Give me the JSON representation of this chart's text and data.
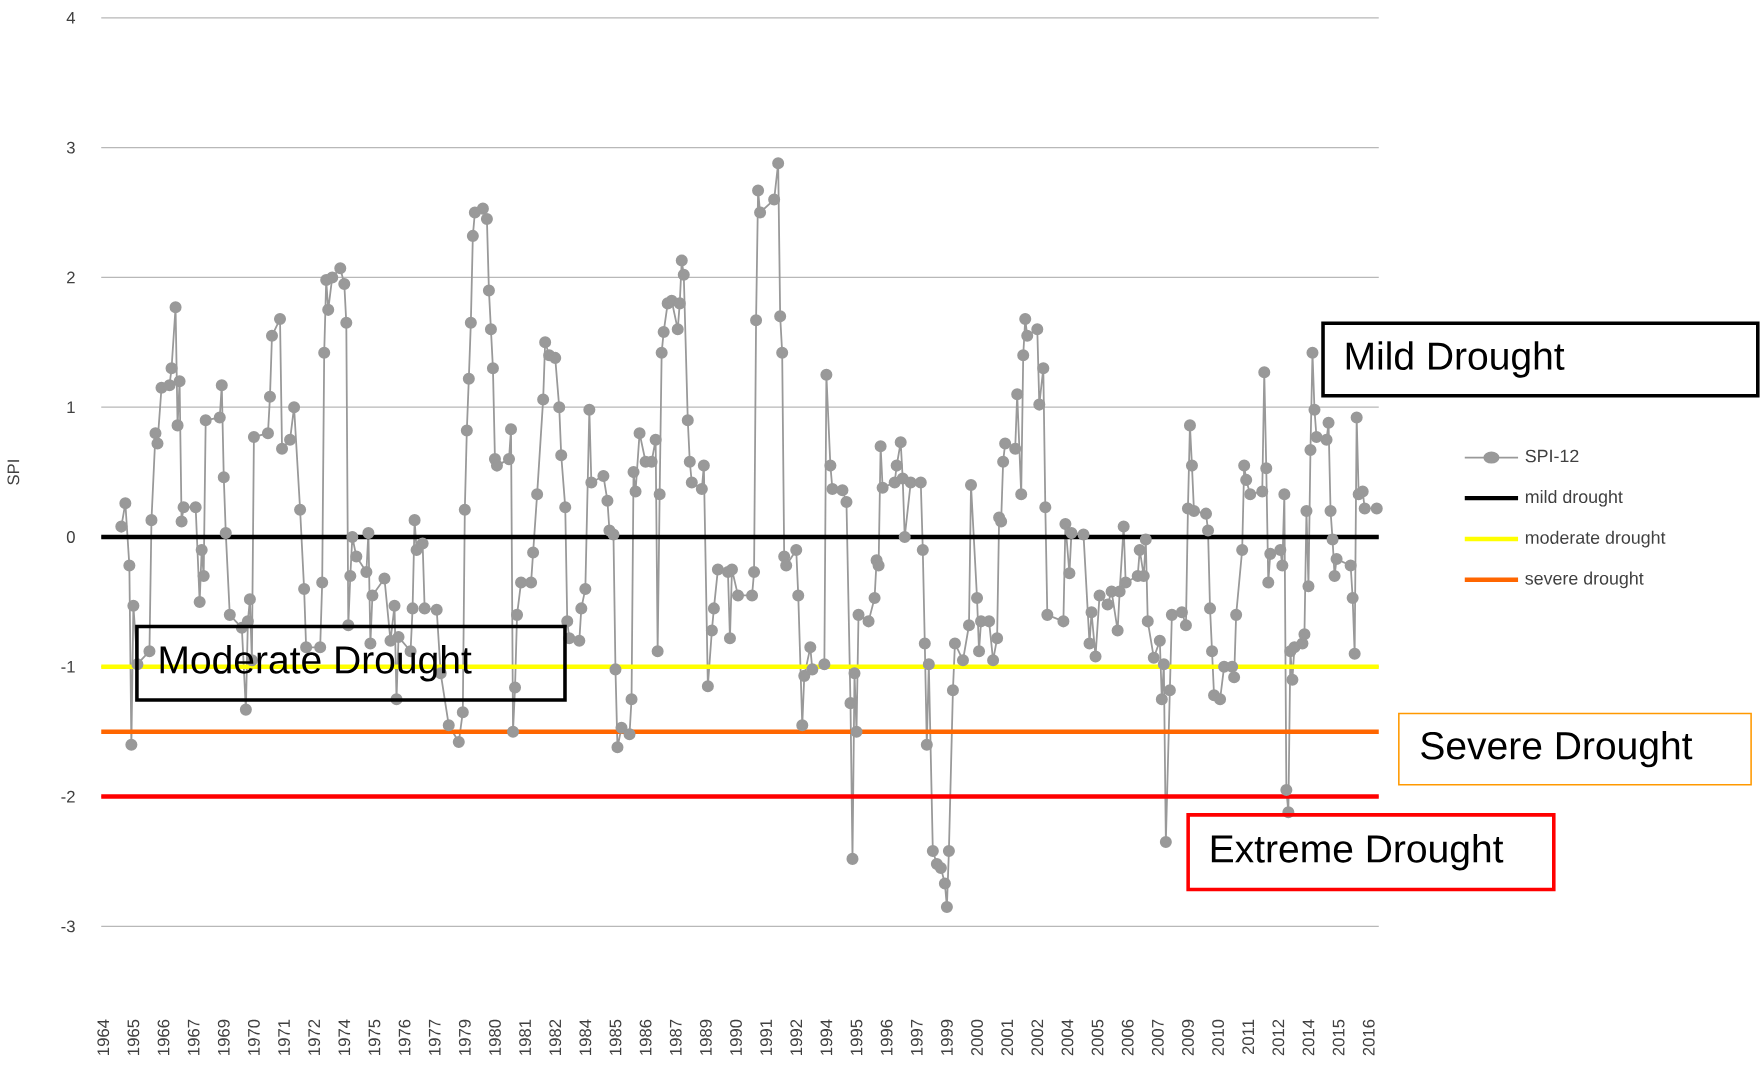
{
  "chart_data": {
    "type": "line",
    "ylabel": "SPI",
    "xlim": [
      "1963-12",
      "2016-12"
    ],
    "ylim": [
      -3,
      4
    ],
    "yticks": [
      -3,
      -2,
      -1,
      0,
      1,
      2,
      3,
      4
    ],
    "xticks": [
      {
        "value": "1964-01",
        "label": "1964"
      },
      {
        "value": "1965-04",
        "label": "1965"
      },
      {
        "value": "1966-07",
        "label": "1966"
      },
      {
        "value": "1967-10",
        "label": "1967"
      },
      {
        "value": "1969-01",
        "label": "1969"
      },
      {
        "value": "1970-04",
        "label": "1970"
      },
      {
        "value": "1971-07",
        "label": "1971"
      },
      {
        "value": "1972-10",
        "label": "1972"
      },
      {
        "value": "1974-01",
        "label": "1974"
      },
      {
        "value": "1975-04",
        "label": "1975"
      },
      {
        "value": "1976-07",
        "label": "1976"
      },
      {
        "value": "1977-10",
        "label": "1977"
      },
      {
        "value": "1979-01",
        "label": "1979"
      },
      {
        "value": "1980-04",
        "label": "1980"
      },
      {
        "value": "1981-07",
        "label": "1981"
      },
      {
        "value": "1982-10",
        "label": "1982"
      },
      {
        "value": "1984-01",
        "label": "1984"
      },
      {
        "value": "1985-04",
        "label": "1985"
      },
      {
        "value": "1986-07",
        "label": "1986"
      },
      {
        "value": "1987-10",
        "label": "1987"
      },
      {
        "value": "1989-01",
        "label": "1989"
      },
      {
        "value": "1990-04",
        "label": "1990"
      },
      {
        "value": "1991-07",
        "label": "1991"
      },
      {
        "value": "1992-10",
        "label": "1992"
      },
      {
        "value": "1994-01",
        "label": "1994"
      },
      {
        "value": "1995-04",
        "label": "1995"
      },
      {
        "value": "1996-07",
        "label": "1996"
      },
      {
        "value": "1997-10",
        "label": "1997"
      },
      {
        "value": "1999-01",
        "label": "1999"
      },
      {
        "value": "2000-04",
        "label": "2000"
      },
      {
        "value": "2001-07",
        "label": "2001"
      },
      {
        "value": "2002-10",
        "label": "2002"
      },
      {
        "value": "2004-01",
        "label": "2004"
      },
      {
        "value": "2005-04",
        "label": "2005"
      },
      {
        "value": "2006-07",
        "label": "2006"
      },
      {
        "value": "2007-10",
        "label": "2007"
      },
      {
        "value": "2009-01",
        "label": "2009"
      },
      {
        "value": "2010-04",
        "label": "2010"
      },
      {
        "value": "2011-07",
        "label": "2011"
      },
      {
        "value": "2012-10",
        "label": "2012"
      },
      {
        "value": "2014-01",
        "label": "2014"
      },
      {
        "value": "2015-04",
        "label": "2015"
      },
      {
        "value": "2016-07",
        "label": "2016"
      }
    ],
    "grid": "y",
    "legend": "right",
    "marker": "circle",
    "line_style": "solid",
    "series": [
      {
        "name": "SPI-12",
        "color": "#999999",
        "x": [
          "1964-10",
          "1964-12",
          "1965-02",
          "1965-03",
          "1965-04",
          "1965-06",
          "1965-12",
          "1966-01",
          "1966-03",
          "1966-04",
          "1966-06",
          "1966-10",
          "1966-11",
          "1967-01",
          "1967-02",
          "1967-03",
          "1967-04",
          "1967-05",
          "1967-11",
          "1968-01",
          "1968-02",
          "1968-03",
          "1968-04",
          "1968-11",
          "1968-12",
          "1969-01",
          "1969-02",
          "1969-04",
          "1969-10",
          "1969-12",
          "1970-01",
          "1970-02",
          "1970-03",
          "1970-04",
          "1970-11",
          "1970-12",
          "1971-01",
          "1971-05",
          "1971-06",
          "1971-10",
          "1971-12",
          "1972-03",
          "1972-05",
          "1972-06",
          "1973-01",
          "1973-02",
          "1973-03",
          "1973-04",
          "1973-05",
          "1973-07",
          "1973-11",
          "1974-01",
          "1974-02",
          "1974-03",
          "1974-04",
          "1974-05",
          "1974-07",
          "1974-12",
          "1975-01",
          "1975-02",
          "1975-03",
          "1975-09",
          "1975-12",
          "1976-02",
          "1976-03",
          "1976-04",
          "1976-10",
          "1976-11",
          "1976-12",
          "1977-01",
          "1977-04",
          "1977-05",
          "1977-11",
          "1978-01",
          "1978-05",
          "1978-10",
          "1978-12",
          "1979-01",
          "1979-02",
          "1979-03",
          "1979-04",
          "1979-05",
          "1979-06",
          "1979-10",
          "1979-12",
          "1980-01",
          "1980-02",
          "1980-03",
          "1980-04",
          "1980-05",
          "1980-11",
          "1980-12",
          "1981-01",
          "1981-02",
          "1981-03",
          "1981-05",
          "1981-10",
          "1981-11",
          "1982-01",
          "1982-04",
          "1982-05",
          "1982-07",
          "1982-10",
          "1982-12",
          "1983-01",
          "1983-03",
          "1983-04",
          "1983-05",
          "1983-10",
          "1983-11",
          "1984-01",
          "1984-03",
          "1984-04",
          "1984-10",
          "1984-12",
          "1985-01",
          "1985-03",
          "1985-04",
          "1985-05",
          "1985-07",
          "1985-11",
          "1985-12",
          "1986-01",
          "1986-02",
          "1986-04",
          "1986-07",
          "1986-10",
          "1986-12",
          "1987-01",
          "1987-02",
          "1987-03",
          "1987-04",
          "1987-06",
          "1987-08",
          "1987-11",
          "1987-12",
          "1988-01",
          "1988-02",
          "1988-04",
          "1988-05",
          "1988-06",
          "1988-11",
          "1988-12",
          "1989-02",
          "1989-04",
          "1989-05",
          "1989-07",
          "1989-12",
          "1990-01",
          "1990-02",
          "1990-05",
          "1990-12",
          "1991-01",
          "1991-02",
          "1991-03",
          "1991-04",
          "1991-11",
          "1992-01",
          "1992-02",
          "1992-03",
          "1992-04",
          "1992-05",
          "1992-10",
          "1992-11",
          "1993-01",
          "1993-02",
          "1993-05",
          "1993-06",
          "1993-12",
          "1994-01",
          "1994-03",
          "1994-04",
          "1994-09",
          "1994-11",
          "1995-01",
          "1995-02",
          "1995-03",
          "1995-04",
          "1995-05",
          "1995-10",
          "1996-01",
          "1996-02",
          "1996-03",
          "1996-04",
          "1996-05",
          "1996-11",
          "1996-12",
          "1997-02",
          "1997-03",
          "1997-04",
          "1997-07",
          "1997-12",
          "1998-01",
          "1998-02",
          "1998-03",
          "1998-04",
          "1998-06",
          "1998-08",
          "1998-10",
          "1998-12",
          "1999-01",
          "1999-02",
          "1999-04",
          "1999-05",
          "1999-09",
          "1999-12",
          "2000-01",
          "2000-04",
          "2000-05",
          "2000-06",
          "2000-10",
          "2000-12",
          "2001-02",
          "2001-03",
          "2001-04",
          "2001-05",
          "2001-06",
          "2001-11",
          "2001-12",
          "2002-02",
          "2002-03",
          "2002-04",
          "2002-05",
          "2002-10",
          "2002-11",
          "2003-01",
          "2003-02",
          "2003-03",
          "2003-11",
          "2003-12",
          "2004-02",
          "2004-03",
          "2004-09",
          "2004-12",
          "2005-01",
          "2005-03",
          "2005-05",
          "2005-09",
          "2005-11",
          "2006-02",
          "2006-03",
          "2006-05",
          "2006-06",
          "2006-12",
          "2007-01",
          "2007-03",
          "2007-04",
          "2007-05",
          "2007-08",
          "2007-11",
          "2007-12",
          "2008-01",
          "2008-02",
          "2008-04",
          "2008-05",
          "2008-10",
          "2008-12",
          "2009-01",
          "2009-02",
          "2009-03",
          "2009-04",
          "2009-10",
          "2009-11",
          "2009-12",
          "2010-01",
          "2010-02",
          "2010-05",
          "2010-07",
          "2010-11",
          "2010-12",
          "2011-01",
          "2011-04",
          "2011-05",
          "2011-06",
          "2011-08",
          "2012-02",
          "2012-03",
          "2012-04",
          "2012-05",
          "2012-06",
          "2012-11",
          "2012-12",
          "2013-01",
          "2013-02",
          "2013-03",
          "2013-04",
          "2013-05",
          "2013-06",
          "2013-10",
          "2013-11",
          "2013-12",
          "2014-01",
          "2014-02",
          "2014-03",
          "2014-04",
          "2014-05",
          "2014-10",
          "2014-11",
          "2014-12",
          "2015-01",
          "2015-02",
          "2015-03",
          "2015-10",
          "2015-11",
          "2015-12",
          "2016-01",
          "2016-02",
          "2016-04",
          "2016-05",
          "2016-11"
        ],
        "values": [
          0.08,
          0.26,
          -0.22,
          -1.6,
          -0.53,
          -0.98,
          -0.88,
          0.13,
          0.8,
          0.72,
          1.15,
          1.17,
          1.3,
          1.77,
          0.86,
          1.2,
          0.12,
          0.23,
          0.23,
          -0.5,
          -0.1,
          -0.3,
          0.9,
          0.92,
          1.17,
          0.46,
          0.03,
          -0.6,
          -0.7,
          -1.33,
          -0.65,
          -0.48,
          -0.95,
          0.77,
          0.8,
          1.08,
          1.55,
          1.68,
          0.68,
          0.75,
          1.0,
          0.21,
          -0.4,
          -0.85,
          -0.85,
          -0.35,
          1.42,
          1.98,
          1.75,
          2.0,
          2.07,
          1.95,
          1.65,
          -0.68,
          -0.3,
          0.0,
          -0.15,
          -0.27,
          0.03,
          -0.82,
          -0.45,
          -0.32,
          -0.8,
          -0.53,
          -1.25,
          -0.77,
          -0.88,
          -0.55,
          0.13,
          -0.1,
          -0.05,
          -0.55,
          -0.56,
          -1.05,
          -1.45,
          -1.58,
          -1.35,
          0.21,
          0.82,
          1.22,
          1.65,
          2.32,
          2.5,
          2.53,
          2.45,
          1.9,
          1.6,
          1.3,
          0.6,
          0.55,
          0.6,
          0.83,
          -1.5,
          -1.16,
          -0.6,
          -0.35,
          -0.35,
          -0.12,
          0.33,
          1.06,
          1.5,
          1.4,
          1.38,
          1.0,
          0.63,
          0.23,
          -0.65,
          -0.78,
          -0.8,
          -0.55,
          -0.4,
          0.98,
          0.42,
          0.47,
          0.28,
          0.05,
          0.02,
          -1.02,
          -1.62,
          -1.47,
          -1.52,
          -1.25,
          0.5,
          0.35,
          0.8,
          0.58,
          0.58,
          0.75,
          -0.88,
          0.33,
          1.42,
          1.58,
          1.8,
          1.82,
          1.6,
          1.8,
          2.13,
          2.02,
          0.9,
          0.58,
          0.42,
          0.37,
          0.55,
          -1.15,
          -0.72,
          -0.55,
          -0.25,
          -0.27,
          -0.78,
          -0.25,
          -0.45,
          -0.45,
          -0.27,
          1.67,
          2.67,
          2.5,
          2.6,
          2.88,
          1.7,
          1.42,
          -0.15,
          -0.22,
          -0.1,
          -0.45,
          -1.45,
          -1.07,
          -0.85,
          -1.02,
          -0.98,
          1.25,
          0.55,
          0.37,
          0.36,
          0.27,
          -1.28,
          -2.48,
          -1.05,
          -1.5,
          -0.6,
          -0.65,
          -0.47,
          -0.18,
          -0.22,
          0.7,
          0.38,
          0.42,
          0.55,
          0.73,
          0.45,
          0.0,
          0.42,
          0.42,
          -0.1,
          -0.82,
          -1.6,
          -0.98,
          -2.42,
          -2.52,
          -2.55,
          -2.67,
          -2.85,
          -2.42,
          -1.18,
          -0.82,
          -0.95,
          -0.68,
          0.4,
          -0.47,
          -0.88,
          -0.65,
          -0.65,
          -0.95,
          -0.78,
          0.15,
          0.12,
          0.58,
          0.72,
          0.68,
          1.1,
          0.33,
          1.4,
          1.68,
          1.55,
          1.6,
          1.02,
          1.3,
          0.23,
          -0.6,
          -0.65,
          0.1,
          -0.28,
          0.03,
          0.02,
          -0.82,
          -0.58,
          -0.92,
          -0.45,
          -0.52,
          -0.42,
          -0.72,
          -0.42,
          0.08,
          -0.35,
          -0.3,
          -0.1,
          -0.3,
          -0.02,
          -0.65,
          -0.93,
          -0.8,
          -1.25,
          -0.98,
          -2.35,
          -1.18,
          -0.6,
          -0.58,
          -0.68,
          0.22,
          0.86,
          0.55,
          0.2,
          0.18,
          0.05,
          -0.55,
          -0.88,
          -1.22,
          -1.25,
          -1.0,
          -1.0,
          -1.08,
          -0.6,
          -0.1,
          0.55,
          0.44,
          0.33,
          0.35,
          1.27,
          0.53,
          -0.35,
          -0.13,
          -0.1,
          -0.22,
          0.33,
          -1.95,
          -2.12,
          -0.88,
          -1.1,
          -0.85,
          -0.82,
          -0.75,
          0.2,
          -0.38,
          0.67,
          1.42,
          0.98,
          0.77,
          0.75,
          0.88,
          0.2,
          -0.02,
          -0.3,
          -0.17,
          -0.22,
          -0.47,
          -0.9,
          0.92,
          0.33,
          0.35,
          0.22,
          0.22
        ]
      }
    ],
    "ref_lines": [
      {
        "axis": "y",
        "value": 0,
        "label": "mild drought",
        "color": "#000000"
      },
      {
        "axis": "y",
        "value": -1,
        "label": "moderate drought",
        "color": "#ffff00"
      },
      {
        "axis": "y",
        "value": -1.5,
        "label": "severe drought",
        "color": "#ff6600"
      },
      {
        "axis": "y",
        "value": -2,
        "color": "#ff0000"
      }
    ],
    "annotations": [
      "Mild Drought",
      "Moderate Drought",
      "Severe Drought",
      "Extreme Drought"
    ]
  }
}
